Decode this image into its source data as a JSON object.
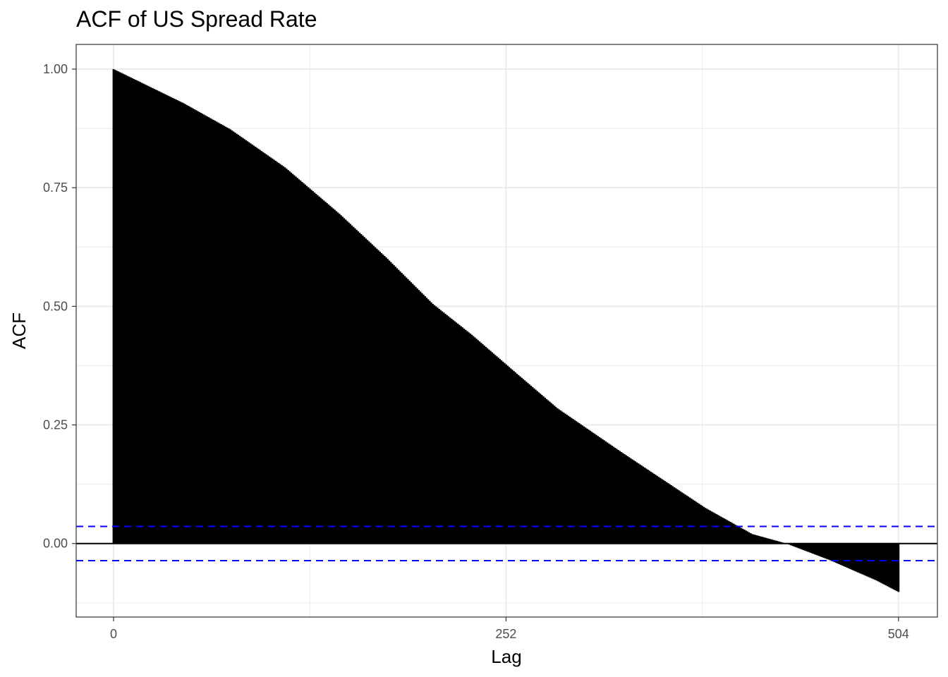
{
  "chart_data": {
    "type": "bar",
    "title": "ACF of US Spread Rate",
    "xlabel": "Lag",
    "ylabel": "ACF",
    "xlim": [
      -24,
      529
    ],
    "ylim": [
      -0.155,
      1.052
    ],
    "x_ticks": [
      0,
      252,
      504
    ],
    "x_tick_labels": [
      "0",
      "252",
      "504"
    ],
    "y_ticks": [
      0.0,
      0.25,
      0.5,
      0.75,
      1.0
    ],
    "y_tick_labels": [
      "0.00",
      "0.25",
      "0.50",
      "0.75",
      "1.00"
    ],
    "grid": true,
    "confidence_interval": [
      -0.036,
      0.036
    ],
    "acf_curve": [
      [
        0,
        1.0
      ],
      [
        20,
        0.968
      ],
      [
        45,
        0.928
      ],
      [
        75,
        0.873
      ],
      [
        110,
        0.793
      ],
      [
        145,
        0.695
      ],
      [
        175,
        0.603
      ],
      [
        205,
        0.505
      ],
      [
        230,
        0.44
      ],
      [
        260,
        0.355
      ],
      [
        285,
        0.285
      ],
      [
        325,
        0.195
      ],
      [
        380,
        0.075
      ],
      [
        410,
        0.02
      ],
      [
        432,
        0.0
      ],
      [
        460,
        -0.035
      ],
      [
        490,
        -0.078
      ],
      [
        504,
        -0.102
      ]
    ],
    "colors": {
      "bars": "#000000",
      "confidence_lines": "#0000ff",
      "zero_line": "#000000",
      "grid": "#ebebeb",
      "panel_border": "#333333"
    }
  }
}
